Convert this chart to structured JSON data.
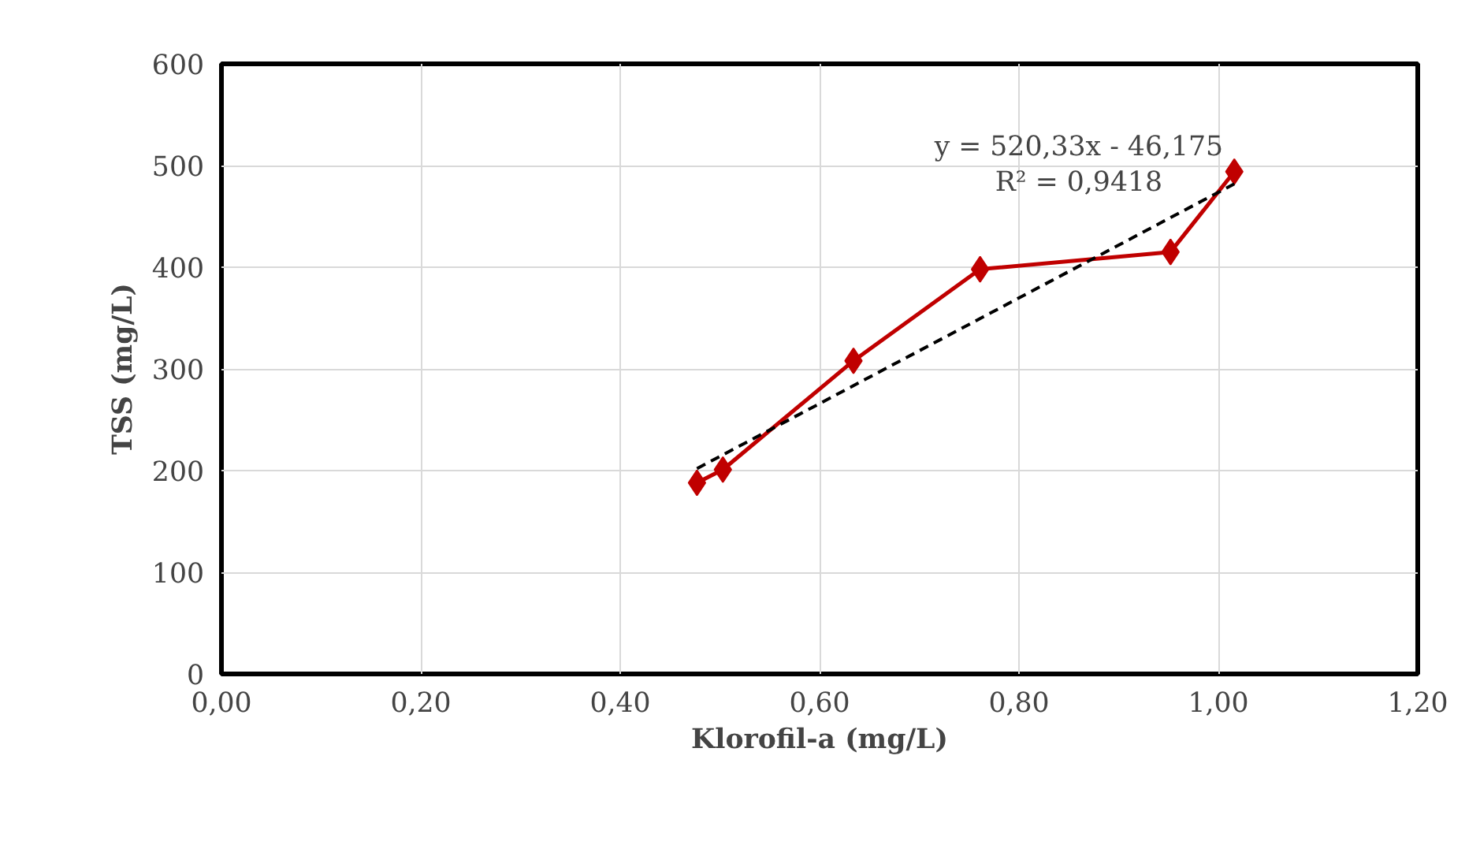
{
  "chart_data": {
    "type": "line",
    "xlabel": "Klorofil-a (mg/L)",
    "ylabel": "TSS (mg/L)",
    "xlim": [
      0,
      1.2
    ],
    "ylim": [
      0,
      600
    ],
    "xticks": [
      {
        "value": 0,
        "label": "0,00"
      },
      {
        "value": 0.2,
        "label": "0,20"
      },
      {
        "value": 0.4,
        "label": "0,40"
      },
      {
        "value": 0.6,
        "label": "0,60"
      },
      {
        "value": 0.8,
        "label": "0,80"
      },
      {
        "value": 1.0,
        "label": "1,00"
      },
      {
        "value": 1.2,
        "label": "1,20"
      }
    ],
    "yticks": [
      0,
      100,
      200,
      300,
      400,
      500,
      600
    ],
    "grid": true,
    "series": [
      {
        "color": "#c00000",
        "marker": "diamond",
        "line_style": "solid",
        "x": [
          0.477,
          0.503,
          0.634,
          0.761,
          0.952,
          1.016
        ],
        "values": [
          188,
          201,
          308,
          398,
          415,
          494
        ]
      },
      {
        "type": "line",
        "color": "#000000",
        "marker": "none",
        "line_style": "dashed",
        "x": [
          0.477,
          1.016
        ],
        "values": [
          202,
          482
        ]
      }
    ],
    "annotations": [
      "y = 520,33x - 46,175",
      "R² = 0,9418"
    ]
  }
}
